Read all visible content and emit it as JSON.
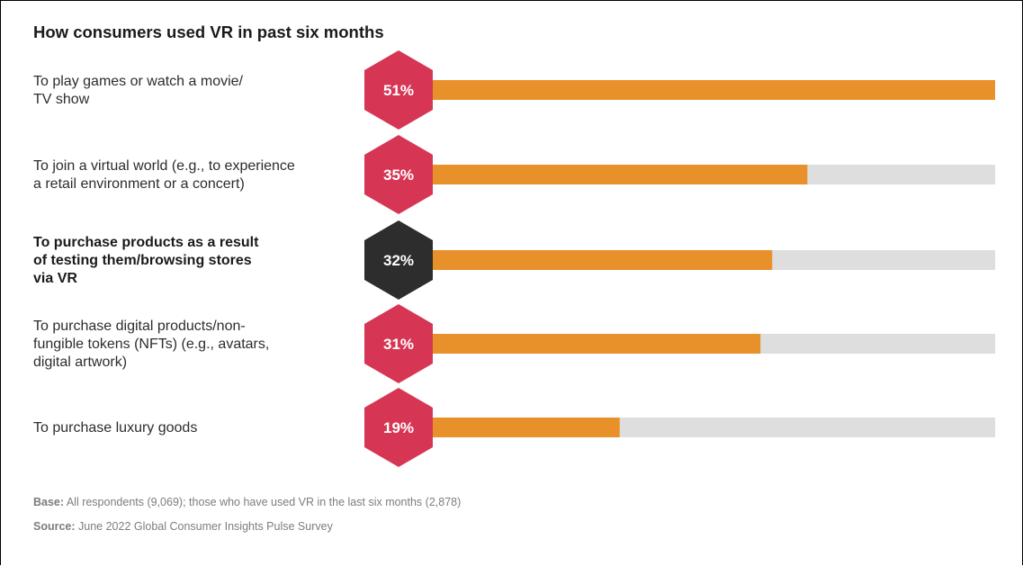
{
  "colors": {
    "bar": "#E8912B",
    "track": "#DEDEDE",
    "hex_default": "#D63654",
    "hex_highlight": "#2D2D2D"
  },
  "chart_data": {
    "type": "bar",
    "orientation": "horizontal",
    "title": "How consumers used VR in past six months",
    "xlim": [
      0,
      51
    ],
    "categories": [
      [
        "To play games or watch a movie/",
        "TV show"
      ],
      [
        "To join a virtual world (e.g., to experience",
        "a retail environment or a concert)"
      ],
      [
        "To purchase products as a result",
        "of testing them/browsing stores",
        "via VR"
      ],
      [
        "To purchase digital products/non-",
        "fungible tokens (NFTs) (e.g., avatars,",
        "digital artwork)"
      ],
      [
        "To purchase luxury goods"
      ]
    ],
    "values": [
      51,
      35,
      32,
      31,
      19
    ],
    "value_labels": [
      "51%",
      "35%",
      "32%",
      "31%",
      "19%"
    ],
    "highlighted": [
      false,
      false,
      true,
      false,
      false
    ],
    "grid": false,
    "legend": "none"
  },
  "footnotes": {
    "base_key": "Base:",
    "base_text": " All respondents (9,069); those who have used VR in the last six months (2,878)",
    "source_key": "Source:",
    "source_text": " June 2022 Global Consumer Insights Pulse Survey"
  }
}
